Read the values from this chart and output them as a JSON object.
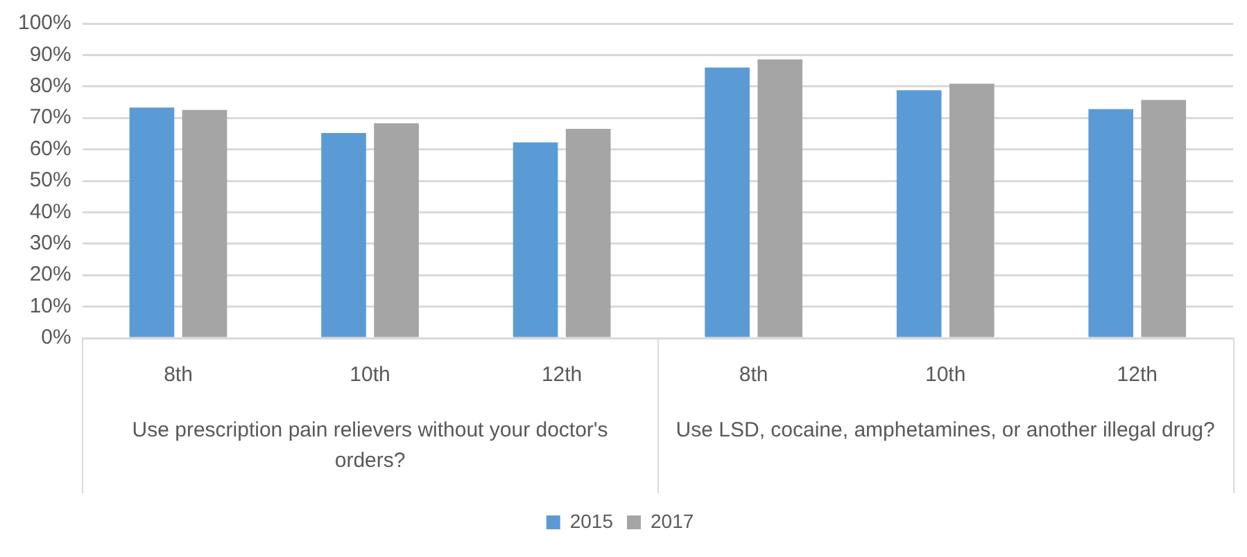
{
  "chart_data": {
    "type": "bar",
    "categories": [
      "8th",
      "10th",
      "12th",
      "8th",
      "10th",
      "12th"
    ],
    "series": [
      {
        "name": "2015",
        "color": "#5b9bd5",
        "values": [
          73.3,
          65.2,
          62.2,
          86.0,
          78.8,
          72.8
        ]
      },
      {
        "name": "2017",
        "color": "#a5a5a5",
        "values": [
          72.5,
          68.3,
          66.5,
          88.6,
          80.9,
          75.7
        ]
      }
    ],
    "ylim": [
      0,
      100
    ],
    "yticks": [
      {
        "value": 0,
        "label": "0%"
      },
      {
        "value": 10,
        "label": "10%"
      },
      {
        "value": 20,
        "label": "20%"
      },
      {
        "value": 30,
        "label": "30%"
      },
      {
        "value": 40,
        "label": "40%"
      },
      {
        "value": 50,
        "label": "50%"
      },
      {
        "value": 60,
        "label": "60%"
      },
      {
        "value": 70,
        "label": "70%"
      },
      {
        "value": 80,
        "label": "80%"
      },
      {
        "value": 90,
        "label": "90%"
      },
      {
        "value": 100,
        "label": "100%"
      }
    ],
    "grid": "y",
    "legend": "bottom",
    "annotations": [
      "Use prescription pain relievers without your doctor's orders?",
      "Use LSD, cocaine, amphetamines, or another illegal drug?"
    ]
  }
}
